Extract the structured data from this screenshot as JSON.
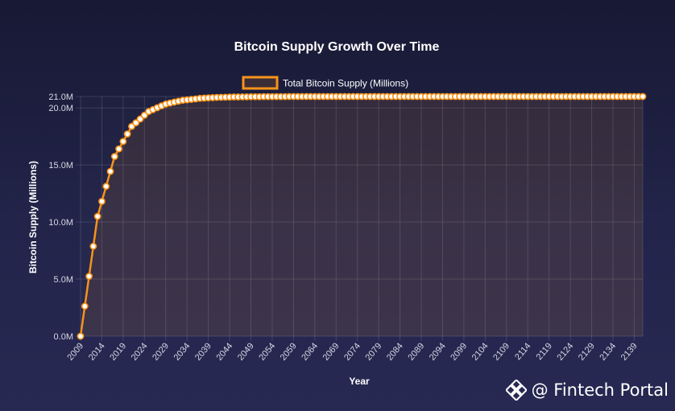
{
  "chart_data": {
    "type": "line",
    "title": "Bitcoin Supply Growth Over Time",
    "xlabel": "Year",
    "ylabel": "Bitcoin Supply (Millions)",
    "ylim": [
      0,
      21
    ],
    "y_ticks": [
      "0.0M",
      "5.0M",
      "10.0M",
      "15.0M",
      "20.0M",
      "21.0M"
    ],
    "x_tick_labels": [
      "2009",
      "2014",
      "2019",
      "2024",
      "2029",
      "2034",
      "2039",
      "2044",
      "2049",
      "2054",
      "2059",
      "2064",
      "2069",
      "2074",
      "2079",
      "2084",
      "2089",
      "2094",
      "2099",
      "2104",
      "2109",
      "2114",
      "2119",
      "2124",
      "2129",
      "2134",
      "2139"
    ],
    "grid": true,
    "legend_position": "top",
    "series": [
      {
        "name": "Total Bitcoin Supply (Millions)",
        "color": "#f7931a",
        "point_fill": "#ffffff",
        "area_fill": "rgba(247,147,26,0.10)",
        "x_start": 2009,
        "x_step": 1,
        "values": [
          0,
          2.63,
          5.25,
          7.88,
          10.5,
          11.81,
          13.13,
          14.44,
          15.75,
          16.41,
          17.06,
          17.72,
          18.38,
          18.7,
          19.03,
          19.36,
          19.69,
          19.85,
          20.02,
          20.18,
          20.34,
          20.43,
          20.51,
          20.59,
          20.67,
          20.71,
          20.75,
          20.79,
          20.84,
          20.86,
          20.88,
          20.9,
          20.92,
          20.93,
          20.94,
          20.95,
          20.96,
          20.96,
          20.97,
          20.97,
          20.98,
          20.98,
          20.98,
          20.99,
          20.99,
          20.99,
          20.99,
          20.99,
          20.99,
          21.0,
          21.0,
          21.0,
          21.0,
          21.0,
          21.0,
          21.0,
          21.0,
          21.0,
          21.0,
          21.0,
          21.0,
          21.0,
          21.0,
          21.0,
          21.0,
          21.0,
          21.0,
          21.0,
          21.0,
          21.0,
          21.0,
          21.0,
          21.0,
          21.0,
          21.0,
          21.0,
          21.0,
          21.0,
          21.0,
          21.0,
          21.0,
          21.0,
          21.0,
          21.0,
          21.0,
          21.0,
          21.0,
          21.0,
          21.0,
          21.0,
          21.0,
          21.0,
          21.0,
          21.0,
          21.0,
          21.0,
          21.0,
          21.0,
          21.0,
          21.0,
          21.0,
          21.0,
          21.0,
          21.0,
          21.0,
          21.0,
          21.0,
          21.0,
          21.0,
          21.0,
          21.0,
          21.0,
          21.0,
          21.0,
          21.0,
          21.0,
          21.0,
          21.0,
          21.0,
          21.0,
          21.0,
          21.0,
          21.0,
          21.0,
          21.0,
          21.0,
          21.0,
          21.0,
          21.0,
          21.0,
          21.0,
          21.0,
          21.0
        ]
      }
    ]
  },
  "watermark": {
    "text": "@ Fintech Portal",
    "icon": "binance-diamond-icon"
  }
}
